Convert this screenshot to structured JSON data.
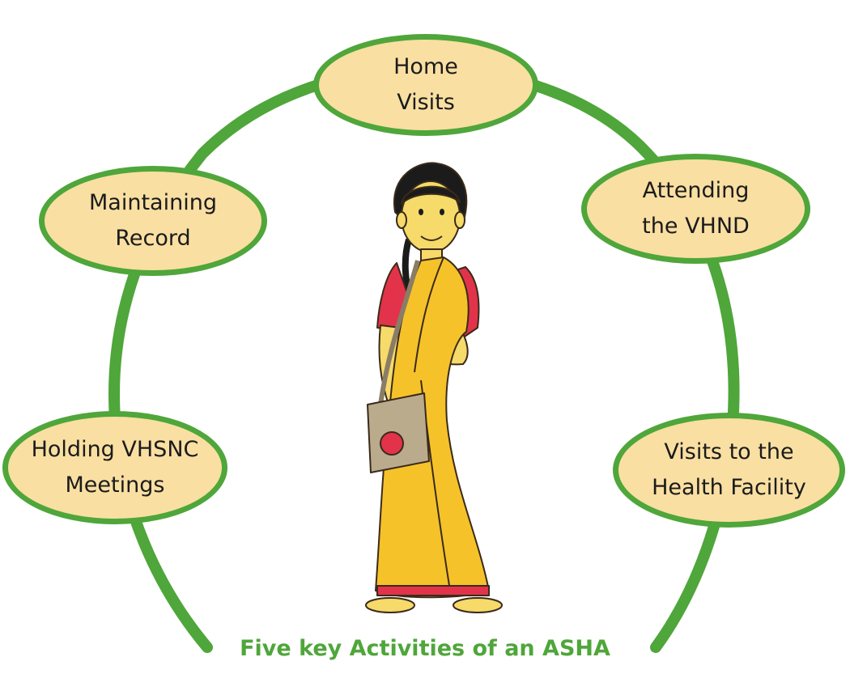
{
  "colors": {
    "arc": "#4fa63a",
    "node_fill": "#f9dfa2",
    "caption": "#4fa63a",
    "saree": "#f6c22a",
    "blouse": "#e2334b",
    "bag": "#b9ab8c"
  },
  "nodes": [
    {
      "id": "home-visits",
      "lines": [
        "Home",
        "Visits"
      ]
    },
    {
      "id": "maintaining-record",
      "lines": [
        "Maintaining",
        "Record"
      ]
    },
    {
      "id": "attending-vhnd",
      "lines": [
        "Attending",
        "the VHND"
      ]
    },
    {
      "id": "holding-vhsnc",
      "lines": [
        "Holding VHSNC",
        "Meetings"
      ]
    },
    {
      "id": "health-facility",
      "lines": [
        "Visits to the",
        "Health Facility"
      ]
    }
  ],
  "caption": "Five key Activities of an ASHA",
  "illustration": {
    "icon": "asha-worker-illustration"
  }
}
